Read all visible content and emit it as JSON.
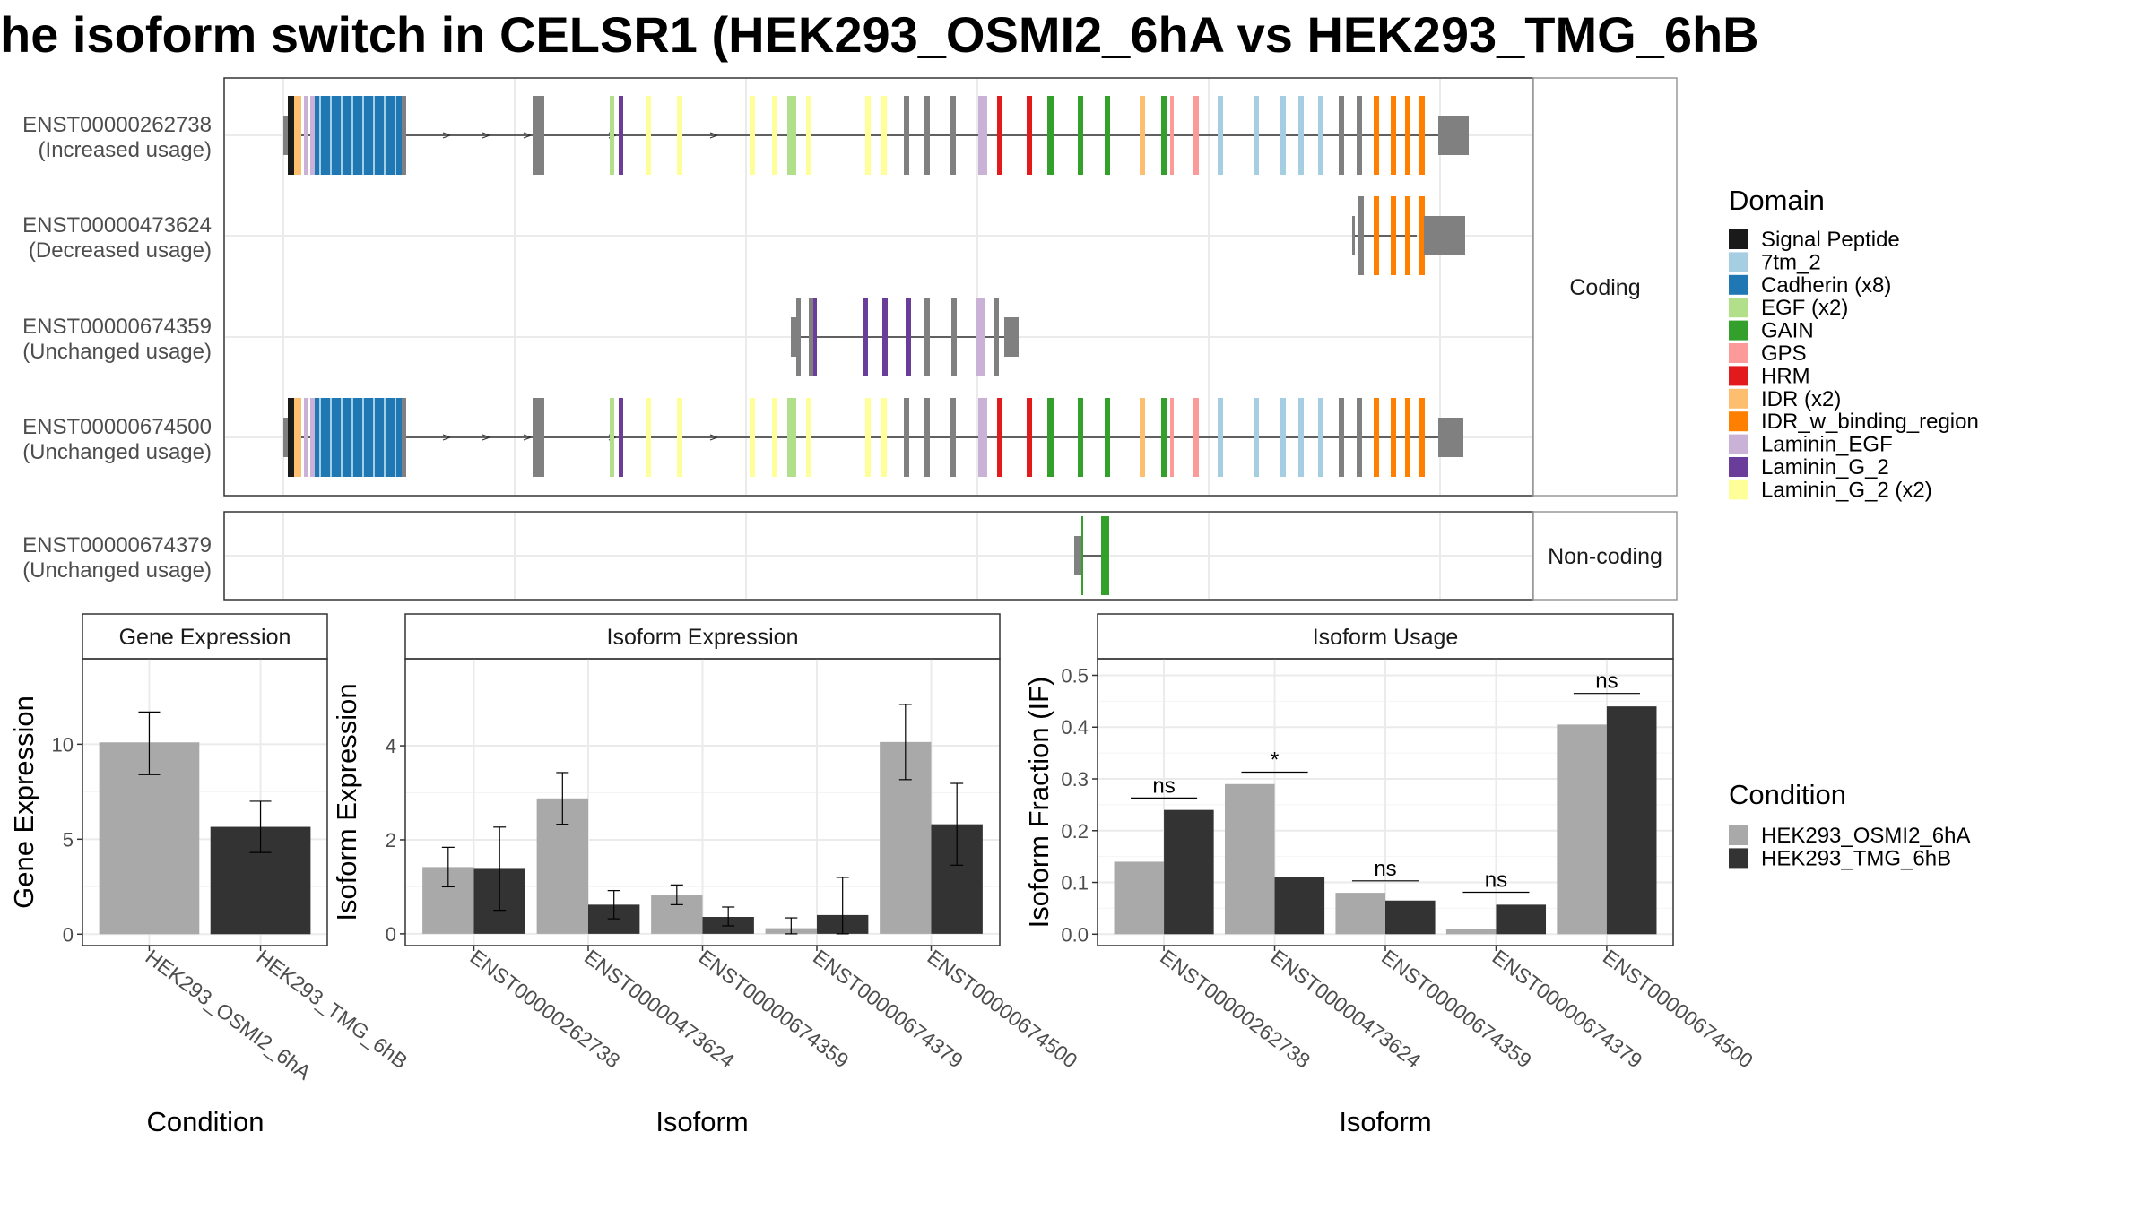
{
  "title": "he isoform switch in CELSR1 (HEK293_OSMI2_6hA vs HEK293_TMG_6hB",
  "panels": {
    "coding_label": "Coding",
    "noncoding_label": "Non-coding"
  },
  "transcripts": [
    {
      "id": "ENST00000262738",
      "usage": "(Increased usage)"
    },
    {
      "id": "ENST00000473624",
      "usage": "(Decreased usage)"
    },
    {
      "id": "ENST00000674359",
      "usage": "(Unchanged usage)"
    },
    {
      "id": "ENST00000674500",
      "usage": "(Unchanged usage)"
    },
    {
      "id": "ENST00000674379",
      "usage": "(Unchanged usage)"
    }
  ],
  "domain_legend": {
    "title": "Domain",
    "items": [
      {
        "label": "Signal Peptide",
        "color": "#1a1a1a"
      },
      {
        "label": "7tm_2",
        "color": "#a6cee3"
      },
      {
        "label": "Cadherin (x8)",
        "color": "#1f78b4"
      },
      {
        "label": "EGF (x2)",
        "color": "#b2df8a"
      },
      {
        "label": "GAIN",
        "color": "#33a02c"
      },
      {
        "label": "GPS",
        "color": "#fb9a99"
      },
      {
        "label": "HRM",
        "color": "#e31a1c"
      },
      {
        "label": "IDR (x2)",
        "color": "#fdbf6f"
      },
      {
        "label": "IDR_w_binding_region",
        "color": "#ff7f00"
      },
      {
        "label": "Laminin_EGF",
        "color": "#cab2d6"
      },
      {
        "label": "Laminin_G_2",
        "color": "#6a3d9a"
      },
      {
        "label": "Laminin_G_2 (x2)",
        "color": "#ffff99"
      }
    ]
  },
  "condition_legend": {
    "title": "Condition",
    "items": [
      {
        "label": "HEK293_OSMI2_6hA",
        "color": "#a9a9a9"
      },
      {
        "label": "HEK293_TMG_6hB",
        "color": "#333333"
      }
    ]
  },
  "chart_data": [
    {
      "type": "bar",
      "title": "Gene Expression",
      "xlabel": "Condition",
      "ylabel": "Gene Expression",
      "categories": [
        "HEK293_OSMI2_6hA",
        "HEK293_TMG_6hB"
      ],
      "values": [
        10.1,
        5.65
      ],
      "error_low": [
        8.4,
        4.3
      ],
      "error_high": [
        11.7,
        7.0
      ],
      "colors": [
        "#a9a9a9",
        "#333333"
      ],
      "ylim": [
        -0.6,
        14.5
      ],
      "yticks": [
        0,
        5,
        10
      ]
    },
    {
      "type": "bar",
      "title": "Isoform Expression",
      "xlabel": "Isoform",
      "ylabel": "Isoform Expression",
      "categories": [
        "ENST00000262738",
        "ENST00000473624",
        "ENST00000674359",
        "ENST00000674379",
        "ENST00000674500"
      ],
      "ylim": [
        -0.25,
        5.85
      ],
      "yticks": [
        0,
        2,
        4
      ],
      "series": [
        {
          "name": "HEK293_OSMI2_6hA",
          "color": "#a9a9a9",
          "values": [
            1.42,
            2.88,
            0.83,
            0.12,
            4.08
          ],
          "error_low": [
            1.0,
            2.33,
            0.62,
            0.0,
            3.28
          ],
          "error_high": [
            1.84,
            3.43,
            1.04,
            0.34,
            4.88
          ]
        },
        {
          "name": "HEK293_TMG_6hB",
          "color": "#333333",
          "values": [
            1.4,
            0.62,
            0.36,
            0.4,
            2.33
          ],
          "error_low": [
            0.5,
            0.32,
            0.17,
            0.0,
            1.46
          ],
          "error_high": [
            2.27,
            0.92,
            0.57,
            1.2,
            3.2
          ]
        }
      ]
    },
    {
      "type": "bar",
      "title": "Isoform Usage",
      "xlabel": "Isoform",
      "ylabel": "Isoform Fraction (IF)",
      "categories": [
        "ENST00000262738",
        "ENST00000473624",
        "ENST00000674359",
        "ENST00000674379",
        "ENST00000674500"
      ],
      "ylim": [
        -0.022,
        0.532
      ],
      "yticks": [
        0.0,
        0.1,
        0.2,
        0.3,
        0.4,
        0.5
      ],
      "ytick_labels": [
        "0.0",
        "0.1",
        "0.2",
        "0.3",
        "0.4",
        "0.5"
      ],
      "series": [
        {
          "name": "HEK293_OSMI2_6hA",
          "color": "#a9a9a9",
          "values": [
            0.14,
            0.29,
            0.08,
            0.01,
            0.405
          ]
        },
        {
          "name": "HEK293_TMG_6hB",
          "color": "#333333",
          "values": [
            0.24,
            0.11,
            0.065,
            0.057,
            0.44
          ]
        }
      ],
      "significance": [
        {
          "label": "ns",
          "y": 0.263
        },
        {
          "label": "*",
          "y": 0.313
        },
        {
          "label": "ns",
          "y": 0.103
        },
        {
          "label": "ns",
          "y": 0.081
        },
        {
          "label": "ns",
          "y": 0.465
        }
      ]
    }
  ]
}
